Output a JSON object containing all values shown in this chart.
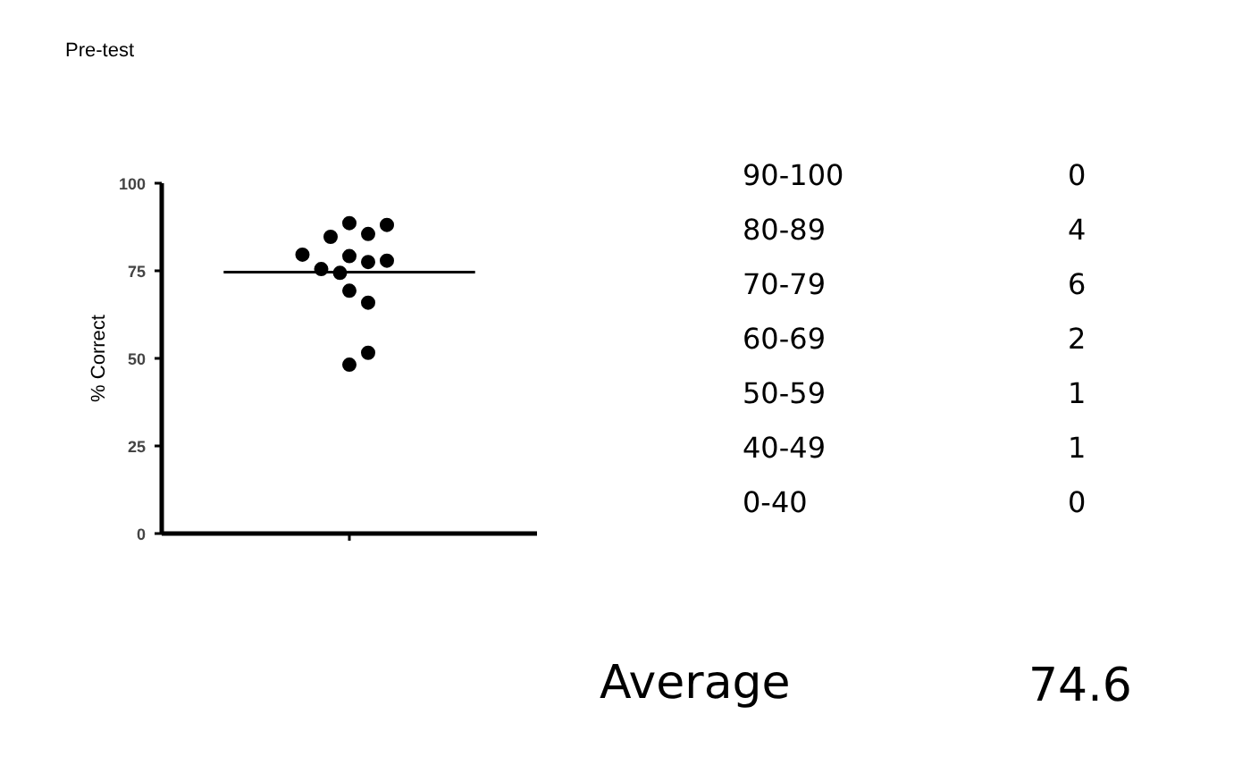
{
  "chart_data": {
    "type": "scatter",
    "title": "Pre-test",
    "ylabel": "% Correct",
    "categories": [
      null
    ],
    "ylim": [
      0,
      100
    ],
    "yticks": [
      0,
      25,
      50,
      75,
      100
    ],
    "grid": false,
    "marker": "circle",
    "series": [
      {
        "color": "#000000",
        "x": [
          null,
          null,
          null,
          null,
          null,
          null,
          null,
          null,
          null,
          null,
          null,
          null,
          null,
          null
        ],
        "values": [
          88.6,
          85.5,
          84.7,
          88.1,
          79.2,
          77.5,
          74.4,
          75.5,
          77.9,
          79.6,
          69.3,
          65.9,
          48.2,
          51.6
        ]
      }
    ],
    "ref_lines": [
      {
        "axis": "y",
        "value": 74.6,
        "color": "#000000"
      }
    ],
    "annotations": [
      "90-100",
      "0",
      "80-89",
      "4",
      "70-79",
      "6",
      "60-69",
      "2",
      "50-59",
      "1",
      "40-49",
      "1",
      "0-40",
      "0",
      "Average",
      "74.6"
    ]
  }
}
